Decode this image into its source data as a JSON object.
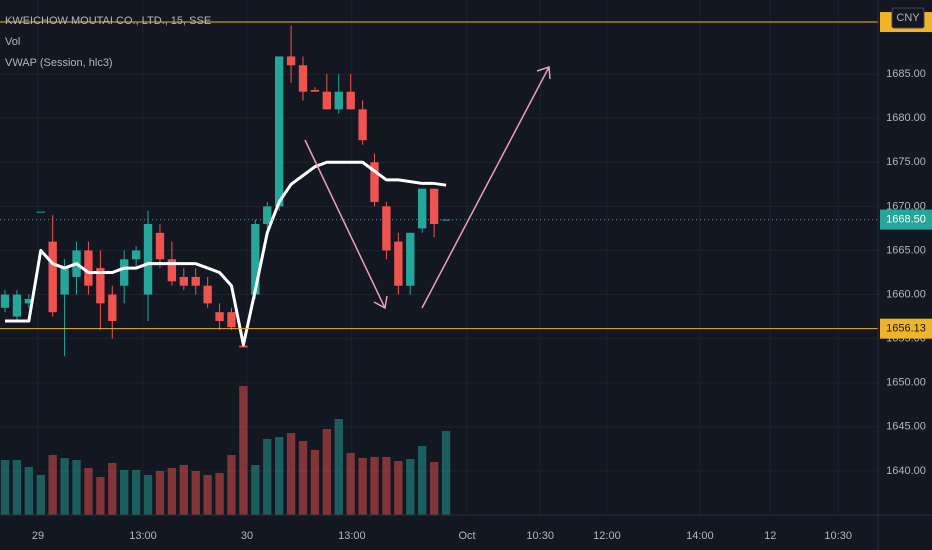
{
  "chart_data": {
    "type": "candlestick",
    "title": "KWEICHOW MOUTAI CO., LTD., 15, SSE",
    "indicators": [
      "Vol",
      "VWAP (Session, hlc3)"
    ],
    "currency": "CNY",
    "up_color": "#26a69a",
    "down_color": "#ef5350",
    "open": [
      1658.5,
      1657.5,
      1659,
      1669.4,
      1666,
      1660,
      1662,
      1665,
      1663,
      1660,
      1661,
      1664,
      1660,
      1667,
      1664,
      1662,
      1662,
      1661,
      1658,
      1658,
      1654.2,
      1660,
      1668,
      1670,
      1687,
      1686,
      1683.2,
      1683,
      1681,
      1683,
      1681,
      1675,
      1670,
      1666,
      1661,
      1667.5,
      1672,
      1668.5
    ],
    "high": [
      1660.5,
      1660.5,
      1660,
      1669.4,
      1669,
      1664,
      1666,
      1666,
      1665,
      1661,
      1665,
      1665.5,
      1669.5,
      1668,
      1666,
      1663,
      1663,
      1662,
      1659,
      1658.5,
      1654.2,
      1668.5,
      1670.5,
      1687,
      1690.5,
      1687,
      1683.5,
      1685,
      1685,
      1685,
      1682,
      1676,
      1670.5,
      1667,
      1667,
      1672,
      1672,
      1668.5
    ],
    "low": [
      1658,
      1657,
      1658.5,
      1669.4,
      1657.5,
      1653,
      1660,
      1660,
      1656,
      1655,
      1659,
      1663,
      1657,
      1663,
      1661,
      1660.5,
      1660,
      1658.5,
      1656,
      1656,
      1654,
      1659.5,
      1667.5,
      1669.5,
      1684,
      1682,
      1683,
      1681,
      1680.5,
      1681,
      1677,
      1670,
      1664,
      1660,
      1660,
      1667,
      1666.5,
      1668.5
    ],
    "close": [
      1660,
      1660,
      1659.5,
      1669.4,
      1658,
      1663,
      1665,
      1661,
      1659,
      1657,
      1664,
      1665,
      1668,
      1664,
      1661.5,
      1661,
      1661,
      1659,
      1657,
      1656.3,
      1654,
      1668,
      1670,
      1687,
      1686,
      1683,
      1683,
      1681,
      1683,
      1681,
      1677.5,
      1670.5,
      1665,
      1661,
      1667,
      1672,
      1668,
      1668.5
    ],
    "volume": [
      55,
      55,
      48,
      40,
      60,
      57,
      55,
      47,
      38,
      52,
      45,
      45,
      40,
      44,
      47,
      50,
      44,
      40,
      42,
      60,
      129,
      50,
      76,
      78,
      82,
      74,
      65,
      86,
      96,
      62,
      57,
      58,
      58,
      54,
      56,
      69,
      53,
      84
    ],
    "volume_ylim": [
      0,
      515
    ],
    "vwap": {
      "name": "VWAP (Session, hlc3)",
      "color": "#ffffff",
      "values": [
        1657,
        1657,
        1657,
        1665,
        1663.5,
        1663,
        1663.5,
        1662.5,
        1662.5,
        1662.5,
        1663,
        1663,
        1663.5,
        1663.5,
        1663.5,
        1663.5,
        1663.5,
        1663,
        1662.5,
        1661,
        1654.3,
        1660.5,
        1667,
        1670.5,
        1672.5,
        1673.5,
        1674.5,
        1675,
        1675,
        1675,
        1675,
        1674,
        1673,
        1673,
        1672.8,
        1672.6,
        1672.6,
        1672.4
      ]
    },
    "levels": [
      {
        "value": 1690.9,
        "color": "#f0b429"
      },
      {
        "value": 1656.13,
        "color": "#f0b429"
      }
    ],
    "last_price": {
      "value": 1668.5,
      "label": "1668.50"
    },
    "xlim": [
      -0.42,
      73.24
    ],
    "ylim": [
      1635,
      1693.4
    ],
    "yticks": [
      {
        "value": 1640,
        "label": "1640.00"
      },
      {
        "value": 1645,
        "label": "1645.00"
      },
      {
        "value": 1650,
        "label": "1650.00"
      },
      {
        "value": 1655,
        "label": "1655.00"
      },
      {
        "value": 1660,
        "label": "1660.00"
      },
      {
        "value": 1665,
        "label": "1665.00"
      },
      {
        "value": 1670,
        "label": "1670.00"
      },
      {
        "value": 1675,
        "label": "1675.00"
      },
      {
        "value": 1680,
        "label": "1680.00"
      },
      {
        "value": 1685,
        "label": "1685.00"
      }
    ],
    "xticks": [
      {
        "value": 2.77,
        "label": "29"
      },
      {
        "value": 11.58,
        "label": "13:00"
      },
      {
        "value": 20.3,
        "label": "30"
      },
      {
        "value": 29.1,
        "label": "13:00"
      },
      {
        "value": 38.76,
        "label": "Oct"
      },
      {
        "value": 44.9,
        "label": "10:30"
      },
      {
        "value": 50.5,
        "label": "12:00"
      },
      {
        "value": 58.3,
        "label": "14:00"
      },
      {
        "value": 64.2,
        "label": "12"
      },
      {
        "value": 69.9,
        "label": "10:30"
      }
    ],
    "grid": true
  }
}
